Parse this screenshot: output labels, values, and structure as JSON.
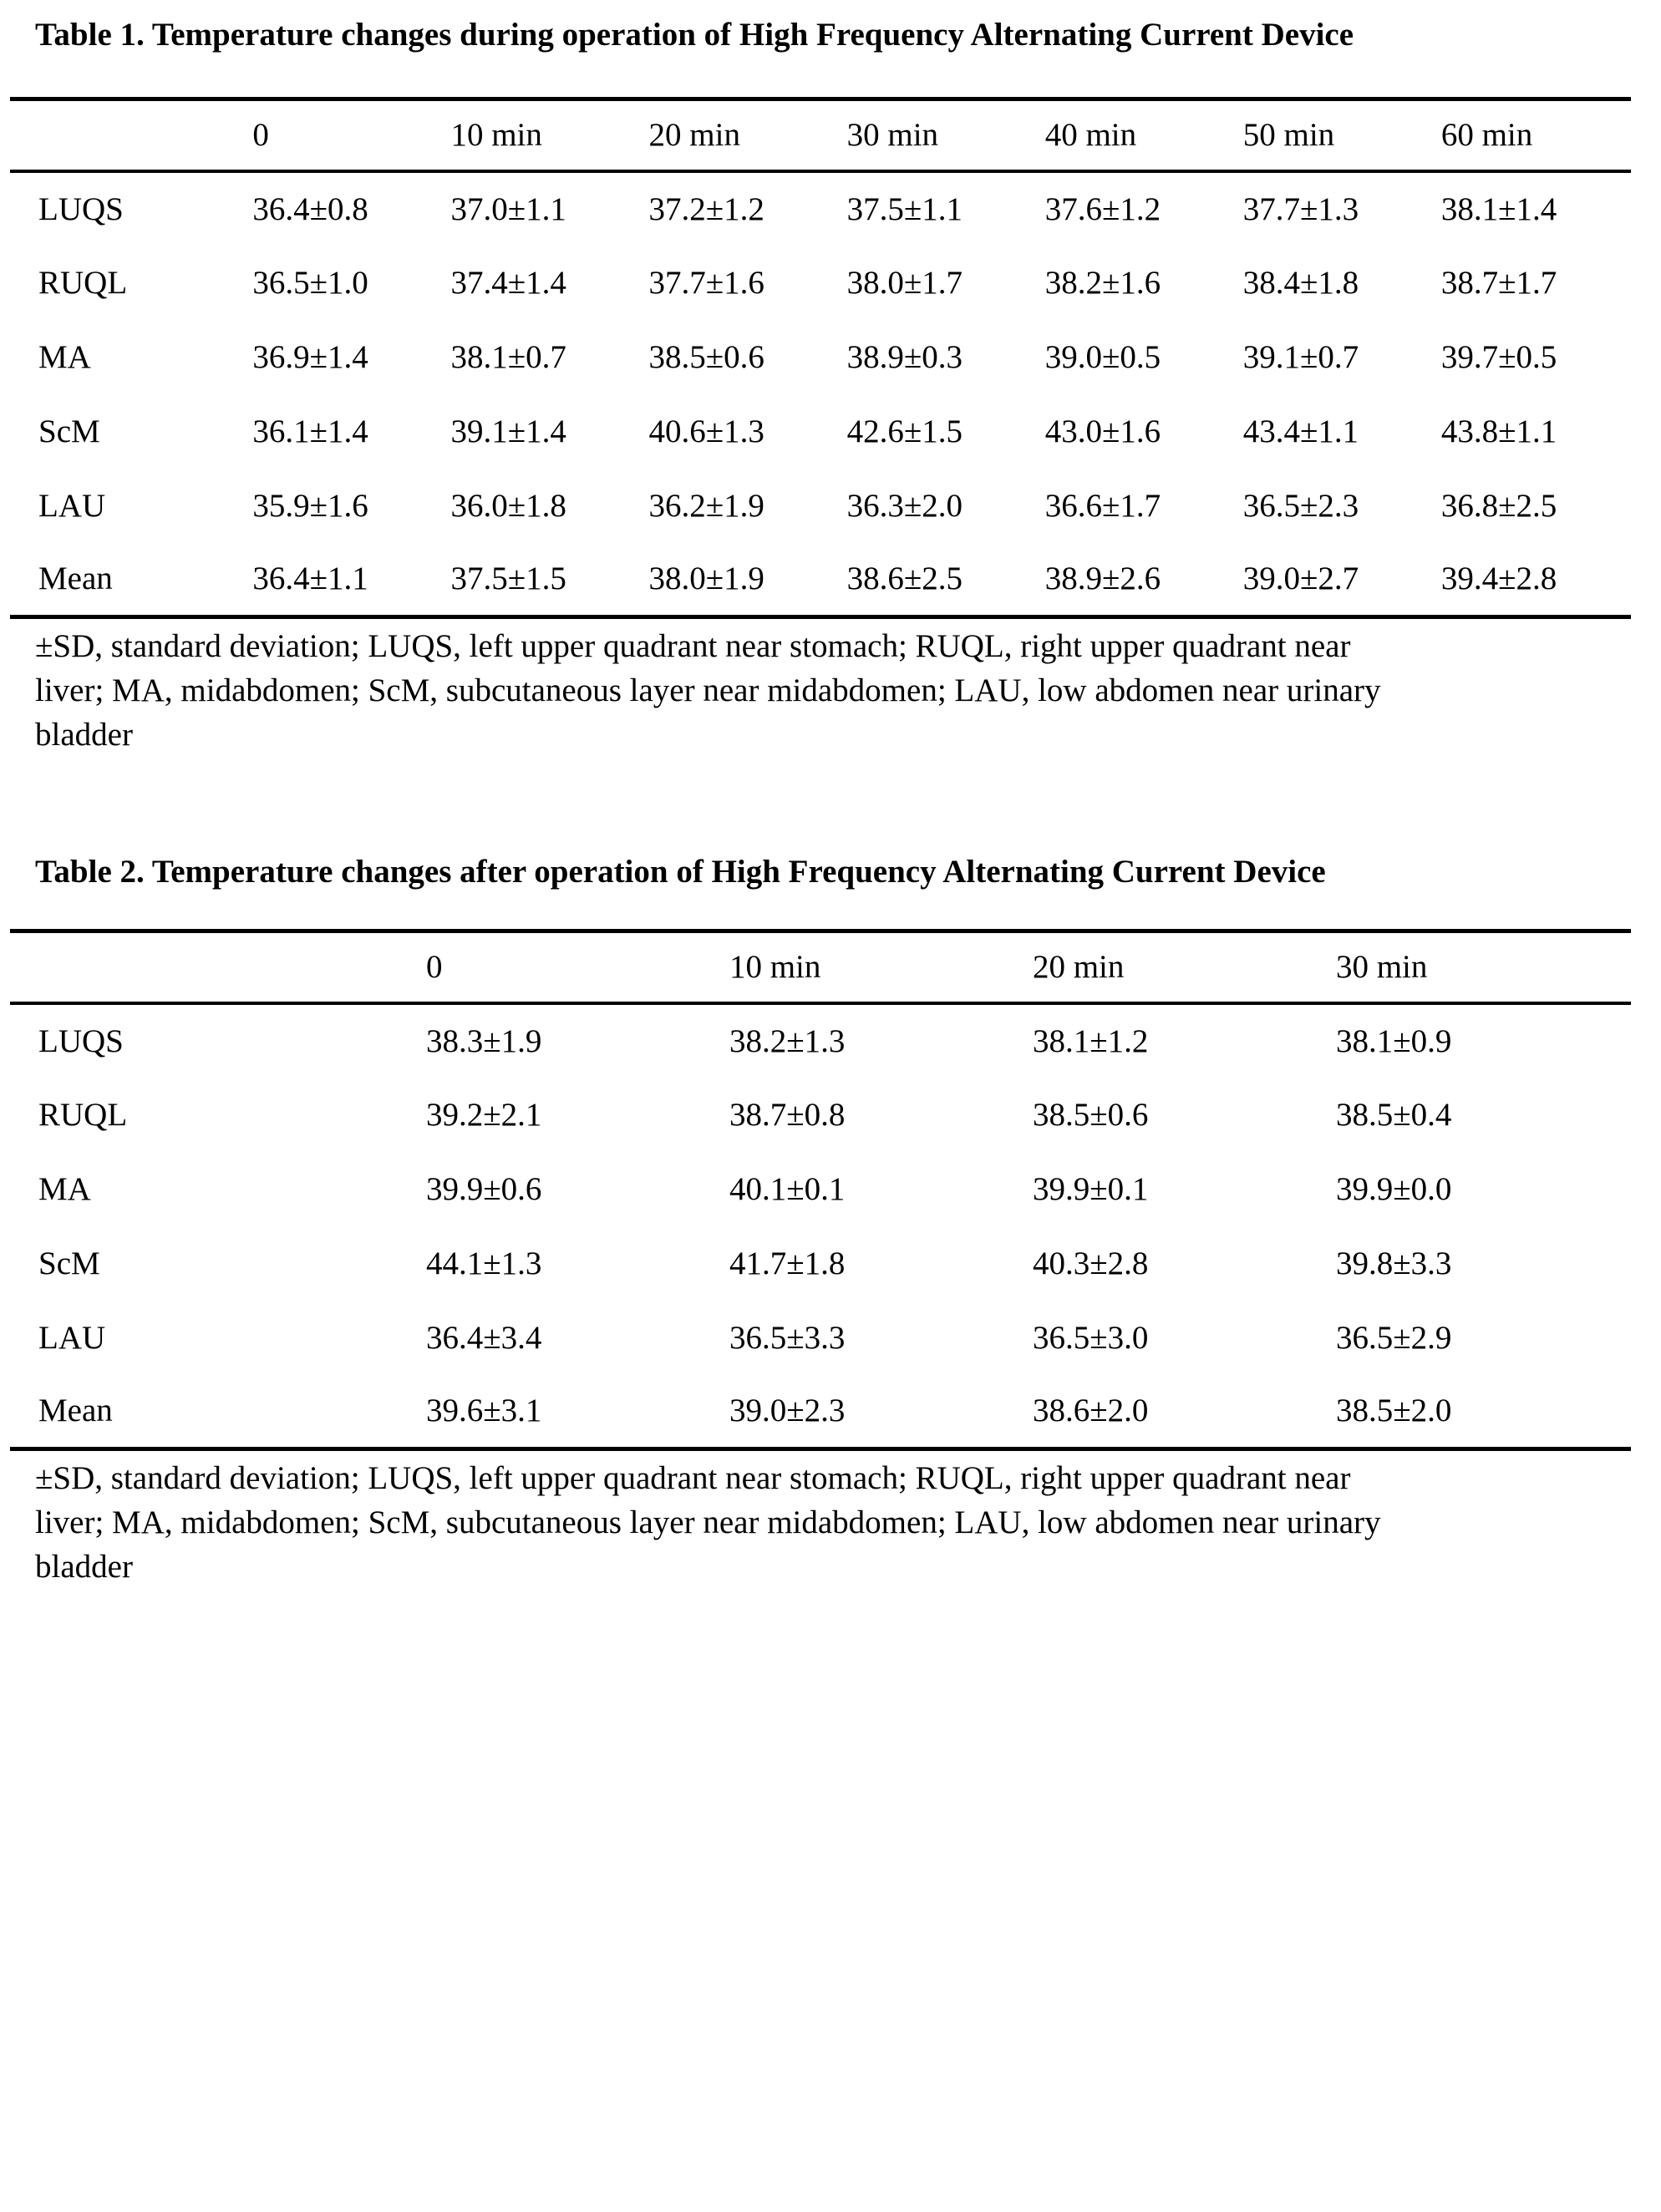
{
  "table1": {
    "title": "Table 1. Temperature changes during operation of High Frequency Alternating Current Device",
    "columns": [
      "",
      "0",
      "10 min",
      "20 min",
      "30 min",
      "40 min",
      "50 min",
      "60 min"
    ],
    "rows": [
      {
        "label": "LUQS",
        "values": [
          "36.4±0.8",
          "37.0±1.1",
          "37.2±1.2",
          "37.5±1.1",
          "37.6±1.2",
          "37.7±1.3",
          "38.1±1.4"
        ]
      },
      {
        "label": "RUQL",
        "values": [
          "36.5±1.0",
          "37.4±1.4",
          "37.7±1.6",
          "38.0±1.7",
          "38.2±1.6",
          "38.4±1.8",
          "38.7±1.7"
        ]
      },
      {
        "label": "MA",
        "values": [
          "36.9±1.4",
          "38.1±0.7",
          "38.5±0.6",
          "38.9±0.3",
          "39.0±0.5",
          "39.1±0.7",
          "39.7±0.5"
        ]
      },
      {
        "label": "ScM",
        "values": [
          "36.1±1.4",
          "39.1±1.4",
          "40.6±1.3",
          "42.6±1.5",
          "43.0±1.6",
          "43.4±1.1",
          "43.8±1.1"
        ]
      },
      {
        "label": "LAU",
        "values": [
          "35.9±1.6",
          "36.0±1.8",
          "36.2±1.9",
          "36.3±2.0",
          "36.6±1.7",
          "36.5±2.3",
          "36.8±2.5"
        ]
      },
      {
        "label": "Mean",
        "values": [
          "36.4±1.1",
          "37.5±1.5",
          "38.0±1.9",
          "38.6±2.5",
          "38.9±2.6",
          "39.0±2.7",
          "39.4±2.8"
        ]
      }
    ],
    "footnote_lines": [
      "±SD, standard deviation; LUQS, left upper quadrant near stomach; RUQL, right upper quadrant near",
      "liver; MA, midabdomen; ScM, subcutaneous layer near midabdomen; LAU, low abdomen near urinary",
      "bladder"
    ]
  },
  "table2": {
    "title": "Table 2. Temperature changes after operation of High Frequency Alternating Current Device",
    "columns": [
      "",
      "0",
      "10 min",
      "20 min",
      "30 min"
    ],
    "rows": [
      {
        "label": "LUQS",
        "values": [
          "38.3±1.9",
          "38.2±1.3",
          "38.1±1.2",
          "38.1±0.9"
        ]
      },
      {
        "label": "RUQL",
        "values": [
          "39.2±2.1",
          "38.7±0.8",
          "38.5±0.6",
          "38.5±0.4"
        ]
      },
      {
        "label": "MA",
        "values": [
          "39.9±0.6",
          "40.1±0.1",
          "39.9±0.1",
          "39.9±0.0"
        ]
      },
      {
        "label": "ScM",
        "values": [
          "44.1±1.3",
          "41.7±1.8",
          "40.3±2.8",
          "39.8±3.3"
        ]
      },
      {
        "label": "LAU",
        "values": [
          "36.4±3.4",
          "36.5±3.3",
          "36.5±3.0",
          "36.5±2.9"
        ]
      },
      {
        "label": "Mean",
        "values": [
          "39.6±3.1",
          "39.0±2.3",
          "38.6±2.0",
          "38.5±2.0"
        ]
      }
    ],
    "footnote_lines": [
      "±SD, standard deviation; LUQS, left upper quadrant near stomach; RUQL, right upper quadrant near",
      "liver; MA, midabdomen; ScM, subcutaneous layer near midabdomen; LAU, low abdomen near urinary",
      "bladder"
    ]
  }
}
